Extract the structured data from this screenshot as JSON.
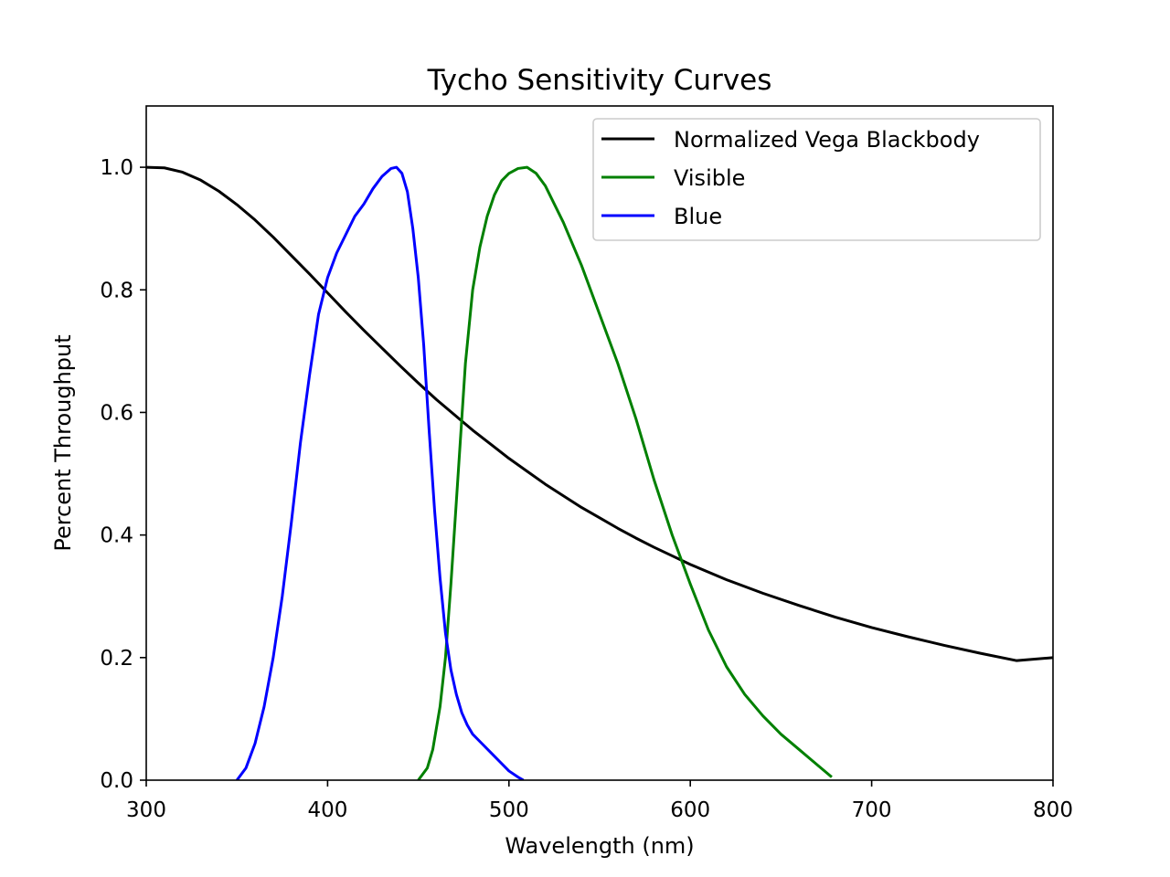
{
  "chart_data": {
    "type": "line",
    "title": "Tycho Sensitivity Curves",
    "xlabel": "Wavelength (nm)",
    "ylabel": "Percent Throughput",
    "xlim": [
      300,
      800
    ],
    "ylim": [
      0,
      1.1
    ],
    "xticks": [
      300,
      400,
      500,
      600,
      700,
      800
    ],
    "xtick_labels": [
      "300",
      "400",
      "500",
      "600",
      "700",
      "800"
    ],
    "yticks": [
      0,
      0.2,
      0.4,
      0.6,
      0.8,
      1.0
    ],
    "ytick_labels": [
      "0.0",
      "0.2",
      "0.4",
      "0.6",
      "0.8",
      "1.0"
    ],
    "grid": false,
    "legend_position": "top-right",
    "series": [
      {
        "name": "Normalized Vega Blackbody",
        "color": "#000000",
        "x": [
          300,
          310,
          320,
          330,
          340,
          350,
          360,
          370,
          380,
          390,
          400,
          410,
          420,
          430,
          440,
          450,
          460,
          470,
          480,
          490,
          500,
          510,
          520,
          530,
          540,
          550,
          560,
          570,
          580,
          590,
          600,
          620,
          640,
          660,
          680,
          700,
          720,
          740,
          760,
          780,
          800
        ],
        "y": [
          1.0,
          0.999,
          0.992,
          0.979,
          0.961,
          0.939,
          0.914,
          0.886,
          0.856,
          0.826,
          0.795,
          0.764,
          0.734,
          0.705,
          0.676,
          0.648,
          0.621,
          0.596,
          0.571,
          0.548,
          0.525,
          0.504,
          0.483,
          0.464,
          0.445,
          0.428,
          0.411,
          0.395,
          0.38,
          0.366,
          0.352,
          0.327,
          0.305,
          0.285,
          0.266,
          0.249,
          0.234,
          0.22,
          0.207,
          0.195,
          0.2
        ]
      },
      {
        "name": "Visible",
        "color": "#008000",
        "x": [
          450,
          455,
          458,
          462,
          465,
          468,
          472,
          476,
          480,
          484,
          488,
          492,
          496,
          500,
          505,
          510,
          515,
          520,
          530,
          540,
          550,
          560,
          570,
          580,
          590,
          600,
          610,
          620,
          630,
          640,
          650,
          660,
          670,
          678
        ],
        "y": [
          0.0,
          0.02,
          0.05,
          0.12,
          0.2,
          0.32,
          0.5,
          0.68,
          0.8,
          0.87,
          0.92,
          0.955,
          0.978,
          0.99,
          0.998,
          1.0,
          0.99,
          0.97,
          0.91,
          0.84,
          0.76,
          0.68,
          0.59,
          0.49,
          0.4,
          0.32,
          0.245,
          0.185,
          0.14,
          0.105,
          0.075,
          0.05,
          0.025,
          0.005
        ]
      },
      {
        "name": "Blue",
        "color": "#0000ff",
        "x": [
          350,
          355,
          360,
          365,
          370,
          375,
          380,
          385,
          390,
          395,
          400,
          405,
          410,
          415,
          420,
          425,
          430,
          435,
          438,
          441,
          444,
          447,
          450,
          453,
          456,
          459,
          462,
          465,
          468,
          471,
          474,
          477,
          480,
          485,
          490,
          495,
          500,
          505,
          508
        ],
        "y": [
          0.0,
          0.02,
          0.06,
          0.12,
          0.2,
          0.3,
          0.42,
          0.55,
          0.66,
          0.76,
          0.82,
          0.86,
          0.89,
          0.92,
          0.94,
          0.965,
          0.985,
          0.998,
          1.0,
          0.99,
          0.96,
          0.9,
          0.82,
          0.71,
          0.57,
          0.44,
          0.33,
          0.24,
          0.18,
          0.14,
          0.11,
          0.09,
          0.075,
          0.06,
          0.045,
          0.03,
          0.015,
          0.005,
          0.0
        ]
      }
    ]
  }
}
